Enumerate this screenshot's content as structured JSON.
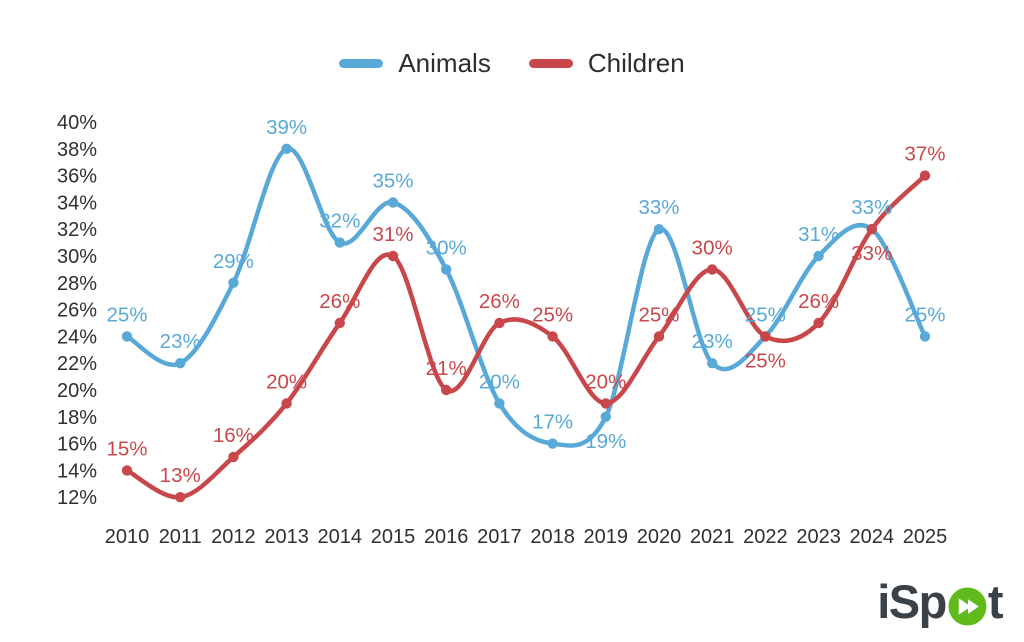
{
  "legend": {
    "items": [
      {
        "label": "Animals",
        "color": "#59A9D8"
      },
      {
        "label": "Children",
        "color": "#C8474B"
      }
    ]
  },
  "chart_data": {
    "type": "line",
    "title": "",
    "x": [
      "2010",
      "2011",
      "2012",
      "2013",
      "2014",
      "2015",
      "2016",
      "2017",
      "2018",
      "2019",
      "2020",
      "2021",
      "2022",
      "2023",
      "2024",
      "2025"
    ],
    "series": [
      {
        "name": "Animals",
        "color": "#59A9D8",
        "values": [
          25,
          23,
          29,
          39,
          32,
          35,
          30,
          20,
          17,
          19,
          33,
          23,
          25,
          31,
          33,
          25
        ],
        "label_positions": [
          "above",
          "above",
          "above",
          "above",
          "above",
          "above",
          "above",
          "above",
          "above",
          "below",
          "above",
          "above",
          "above",
          "above",
          "above",
          "above"
        ]
      },
      {
        "name": "Children",
        "color": "#C8474B",
        "values": [
          15,
          13,
          16,
          20,
          26,
          31,
          21,
          26,
          25,
          20,
          25,
          30,
          25,
          26,
          33,
          37
        ],
        "label_positions": [
          "above",
          "above",
          "above",
          "above",
          "above",
          "above",
          "above",
          "above",
          "above",
          "above",
          "above",
          "above",
          "below",
          "above",
          "below",
          "above"
        ]
      }
    ],
    "y_ticks": [
      "40%",
      "38%",
      "36%",
      "34%",
      "32%",
      "30%",
      "28%",
      "26%",
      "24%",
      "22%",
      "20%",
      "18%",
      "16%",
      "14%",
      "12%"
    ],
    "ylim": [
      12,
      40
    ],
    "point_label_suffix": "%",
    "grid": false,
    "legend_position": "top-center",
    "axis_text_color": "#2f2f2f"
  },
  "branding": {
    "name": "iSpot",
    "text_before": "iSp",
    "text_after": "t",
    "text_color": "#3B4247",
    "accent_color": "#5FBB1B",
    "icon": "double-play-icon"
  }
}
